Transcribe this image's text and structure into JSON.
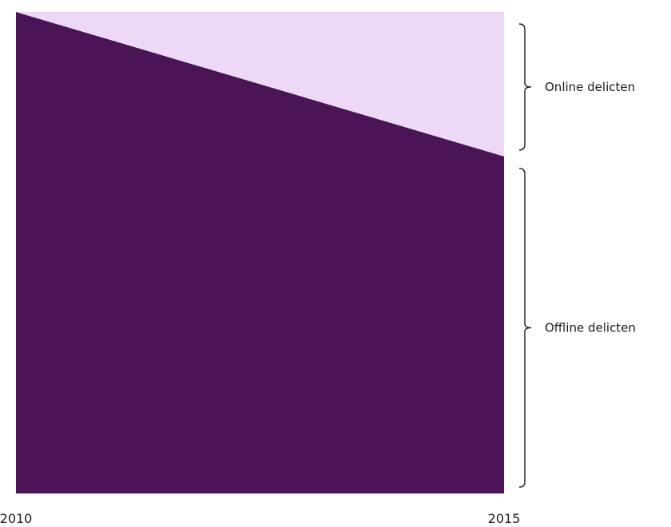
{
  "chart_data": {
    "type": "area",
    "stacked": true,
    "normalized": true,
    "x": [
      "2010",
      "2015"
    ],
    "series": [
      {
        "name": "Offline delicten",
        "values": [
          1.0,
          0.7
        ],
        "color": "#4a1457"
      },
      {
        "name": "Online delicten",
        "values": [
          0.0,
          0.3
        ],
        "color": "#edd9f5"
      }
    ],
    "ylim": [
      0,
      1
    ],
    "grid": false,
    "legend": "right-brackets"
  }
}
